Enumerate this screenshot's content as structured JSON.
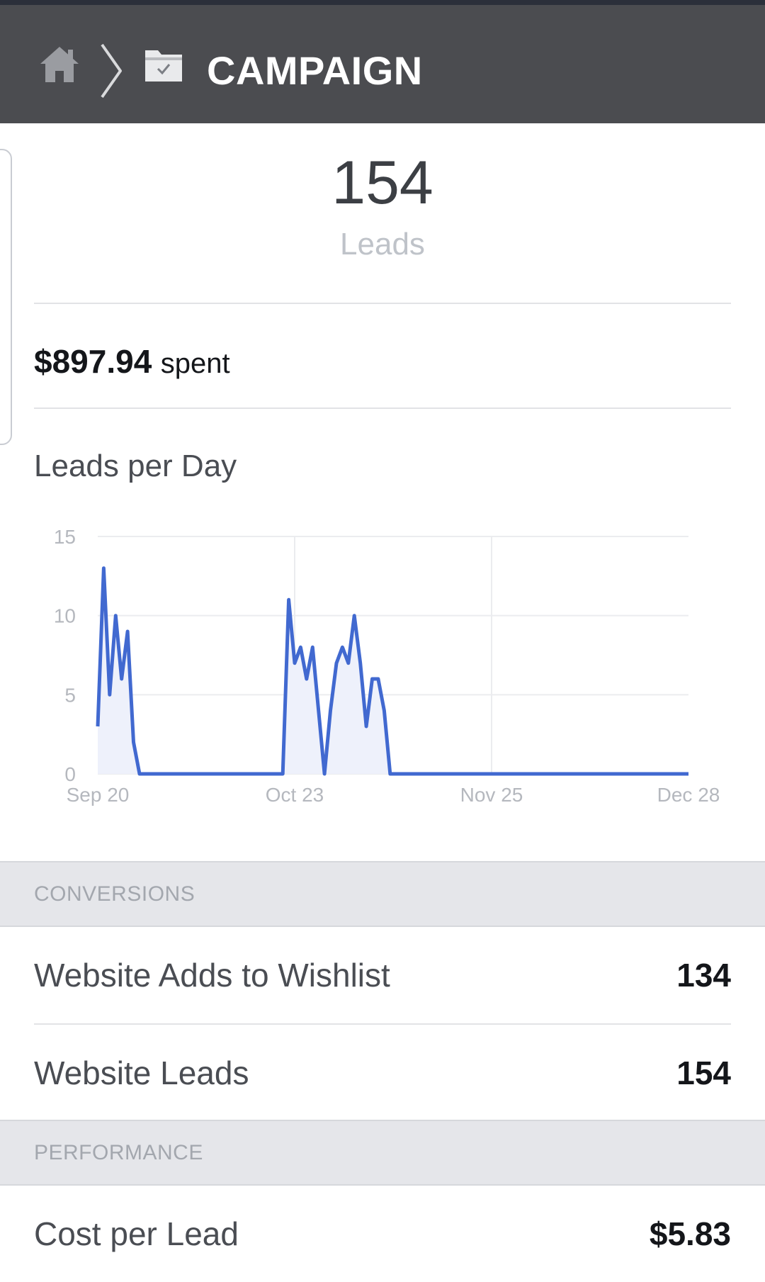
{
  "header": {
    "title": "CAMPAIGN",
    "icons": [
      "home-icon",
      "chevron-right-icon",
      "folder-check-icon"
    ],
    "background": "#4b4c50"
  },
  "summary": {
    "leads_count": "154",
    "leads_label": "Leads",
    "spent_amount": "$897.94",
    "spent_label": "spent"
  },
  "chart_section": {
    "heading": "Leads per Day"
  },
  "chart_data": {
    "type": "area",
    "title": "",
    "xlabel": "",
    "ylabel": "",
    "ylim": [
      0,
      15
    ],
    "yticks": [
      "0",
      "5",
      "10",
      "15"
    ],
    "xticks": [
      "Sep 20",
      "Oct 23",
      "Nov 25",
      "Dec 28"
    ],
    "xrange": [
      "Sep 20",
      "Dec 28"
    ],
    "grid": true,
    "line_color": "#4169d0",
    "fill_color": "#eef1fb",
    "series": [
      {
        "points": [
          [
            "Sep 20",
            3
          ],
          [
            "Sep 21",
            13
          ],
          [
            "Sep 22",
            5
          ],
          [
            "Sep 23",
            10
          ],
          [
            "Sep 24",
            6
          ],
          [
            "Sep 25",
            9
          ],
          [
            "Sep 26",
            2
          ],
          [
            "Sep 27",
            0
          ],
          [
            "Oct 21",
            0
          ],
          [
            "Oct 22",
            11
          ],
          [
            "Oct 23",
            7
          ],
          [
            "Oct 24",
            8
          ],
          [
            "Oct 25",
            6
          ],
          [
            "Oct 26",
            8
          ],
          [
            "Oct 27",
            4
          ],
          [
            "Oct 28",
            0
          ],
          [
            "Oct 29",
            4
          ],
          [
            "Oct 30",
            7
          ],
          [
            "Oct 31",
            8
          ],
          [
            "Nov 1",
            7
          ],
          [
            "Nov 2",
            10
          ],
          [
            "Nov 3",
            7
          ],
          [
            "Nov 4",
            3
          ],
          [
            "Nov 5",
            6
          ],
          [
            "Nov 6",
            6
          ],
          [
            "Nov 7",
            4
          ],
          [
            "Nov 8",
            0
          ],
          [
            "Dec 28",
            0
          ]
        ]
      }
    ]
  },
  "conversions": {
    "header": "CONVERSIONS",
    "rows": [
      {
        "label": "Website Adds to Wishlist",
        "value": "134"
      },
      {
        "label": "Website Leads",
        "value": "154"
      }
    ]
  },
  "performance": {
    "header": "PERFORMANCE",
    "rows": [
      {
        "label": "Cost per Lead",
        "value": "$5.83"
      }
    ]
  }
}
